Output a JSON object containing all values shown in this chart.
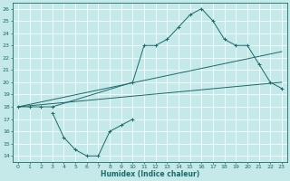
{
  "xlabel": "Humidex (Indice chaleur)",
  "bg_color": "#c5e8e8",
  "line_color": "#1a6b6b",
  "xlim": [
    -0.5,
    23.5
  ],
  "ylim": [
    13.5,
    26.5
  ],
  "xticks": [
    0,
    1,
    2,
    3,
    4,
    5,
    6,
    7,
    8,
    9,
    10,
    11,
    12,
    13,
    14,
    15,
    16,
    17,
    18,
    19,
    20,
    21,
    22,
    23
  ],
  "yticks": [
    14,
    15,
    16,
    17,
    18,
    19,
    20,
    21,
    22,
    23,
    24,
    25,
    26
  ],
  "series": [
    {
      "x": [
        0,
        1,
        2,
        3,
        10,
        11,
        12,
        13,
        14,
        15,
        16,
        17,
        18,
        19,
        20,
        21,
        22,
        23
      ],
      "y": [
        18,
        18,
        18,
        18,
        20,
        23,
        23,
        23.5,
        24.5,
        25.5,
        26,
        25,
        23.5,
        23,
        23,
        21.5,
        20,
        19.5
      ],
      "marker": true
    },
    {
      "x": [
        0,
        23
      ],
      "y": [
        18,
        22.5
      ],
      "marker": false
    },
    {
      "x": [
        0,
        23
      ],
      "y": [
        18,
        20
      ],
      "marker": false
    },
    {
      "x": [
        3,
        4,
        5,
        6,
        7,
        8,
        9,
        10
      ],
      "y": [
        17.5,
        15.5,
        14.5,
        14,
        14,
        16,
        16.5,
        17
      ],
      "marker": true
    }
  ]
}
